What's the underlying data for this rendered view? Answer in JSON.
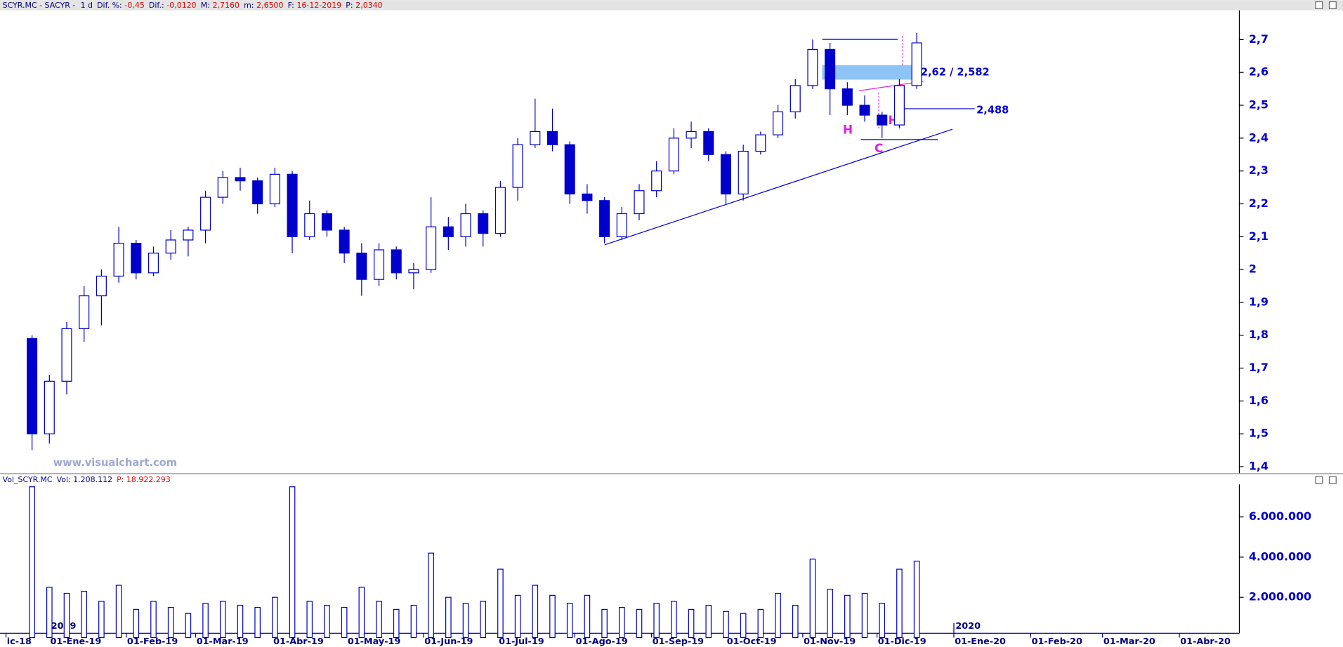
{
  "chart_data": {
    "type": "candlestick",
    "header": {
      "symbol": "SCYR.MC - SACYR -",
      "period": "1 d",
      "fields": [
        {
          "label": "Dif. %:",
          "value": "-0,45"
        },
        {
          "label": "Dif.:",
          "value": "-0,0120"
        },
        {
          "label": "M:",
          "value": "2,7160"
        },
        {
          "label": "m:",
          "value": "2,6500"
        },
        {
          "label": "F:",
          "value": "16-12-2019"
        },
        {
          "label": "P:",
          "value": "2,0340"
        }
      ]
    },
    "watermark": "www.visualchart.com",
    "color": "#0000cc",
    "categories": [
      null,
      null,
      null,
      null,
      null,
      null,
      null,
      null,
      null,
      null,
      null,
      null,
      null,
      null,
      null,
      null,
      null,
      null,
      null,
      null,
      null,
      null,
      null,
      null,
      null,
      null,
      null,
      null,
      null,
      null,
      null,
      null,
      null,
      null,
      null,
      null,
      null,
      null,
      null,
      null,
      null,
      null,
      null,
      null,
      null,
      null,
      null,
      null,
      null,
      null,
      null,
      null
    ],
    "open": [
      1.79,
      1.5,
      1.66,
      1.82,
      1.92,
      1.98,
      2.08,
      1.99,
      2.05,
      2.09,
      2.12,
      2.22,
      2.28,
      2.27,
      2.2,
      2.29,
      2.1,
      2.17,
      2.12,
      2.05,
      1.97,
      2.06,
      1.99,
      2.0,
      2.13,
      2.1,
      2.17,
      2.11,
      2.25,
      2.38,
      2.42,
      2.38,
      2.23,
      2.21,
      2.1,
      2.17,
      2.24,
      2.3,
      2.4,
      2.42,
      2.35,
      2.23,
      2.36,
      2.41,
      2.48,
      2.56,
      2.67,
      2.55,
      2.5,
      2.47,
      2.44,
      2.56
    ],
    "high": [
      1.8,
      1.68,
      1.84,
      1.95,
      2.0,
      2.13,
      2.09,
      2.07,
      2.12,
      2.13,
      2.24,
      2.3,
      2.31,
      2.28,
      2.31,
      2.3,
      2.21,
      2.18,
      2.13,
      2.08,
      2.08,
      2.07,
      2.02,
      2.22,
      2.16,
      2.2,
      2.18,
      2.27,
      2.4,
      2.52,
      2.49,
      2.39,
      2.26,
      2.22,
      2.19,
      2.26,
      2.33,
      2.43,
      2.45,
      2.43,
      2.36,
      2.38,
      2.42,
      2.5,
      2.58,
      2.7,
      2.69,
      2.57,
      2.53,
      2.48,
      2.58,
      2.72
    ],
    "low": [
      1.45,
      1.47,
      1.62,
      1.78,
      1.83,
      1.96,
      1.97,
      1.98,
      2.03,
      2.04,
      2.08,
      2.2,
      2.24,
      2.17,
      2.19,
      2.05,
      2.09,
      2.1,
      2.02,
      1.92,
      1.95,
      1.97,
      1.94,
      1.99,
      2.06,
      2.07,
      2.07,
      2.1,
      2.21,
      2.37,
      2.36,
      2.2,
      2.17,
      2.08,
      2.09,
      2.15,
      2.22,
      2.29,
      2.37,
      2.33,
      2.2,
      2.21,
      2.35,
      2.4,
      2.46,
      2.55,
      2.47,
      2.47,
      2.45,
      2.4,
      2.43,
      2.55
    ],
    "close": [
      1.5,
      1.66,
      1.82,
      1.92,
      1.98,
      2.08,
      1.99,
      2.05,
      2.09,
      2.12,
      2.22,
      2.28,
      2.27,
      2.2,
      2.29,
      2.1,
      2.17,
      2.12,
      2.05,
      1.97,
      2.06,
      1.99,
      2.0,
      2.13,
      2.1,
      2.17,
      2.11,
      2.25,
      2.38,
      2.42,
      2.38,
      2.23,
      2.21,
      2.1,
      2.17,
      2.24,
      2.3,
      2.4,
      2.42,
      2.35,
      2.23,
      2.36,
      2.41,
      2.48,
      2.56,
      2.67,
      2.55,
      2.5,
      2.47,
      2.44,
      2.56,
      2.69
    ],
    "ylim": [
      1.38,
      2.789
    ],
    "yticks": [
      {
        "value": 1.4,
        "label": "1,4"
      },
      {
        "value": 1.5,
        "label": "1,5"
      },
      {
        "value": 1.6,
        "label": "1,6"
      },
      {
        "value": 1.7,
        "label": "1,7"
      },
      {
        "value": 1.8,
        "label": "1,8"
      },
      {
        "value": 1.9,
        "label": "1,9"
      },
      2,
      {
        "value": 2.1,
        "label": "2,1"
      },
      {
        "value": 2.2,
        "label": "2,2"
      },
      {
        "value": 2.3,
        "label": "2,3"
      },
      {
        "value": 2.4,
        "label": "2,4"
      },
      {
        "value": 2.5,
        "label": "2,5"
      },
      {
        "value": 2.6,
        "label": "2,6"
      },
      {
        "value": 2.7,
        "label": "2,7"
      }
    ],
    "xlim": [
      -1.6,
      69.5
    ],
    "xticks": [
      {
        "value": -1.5,
        "label": "ic-18"
      },
      {
        "value": 1,
        "label": "01-Ene-19"
      },
      {
        "value": 5.43,
        "label": "01-Feb-19"
      },
      {
        "value": 9.43,
        "label": "01-Mar-19"
      },
      {
        "value": 13.86,
        "label": "01-Abr-19"
      },
      {
        "value": 18.14,
        "label": "01-May-19"
      },
      {
        "value": 22.57,
        "label": "01-Jun-19"
      },
      {
        "value": 26.86,
        "label": "01-Jul-19"
      },
      {
        "value": 31.29,
        "label": "01-Ago-19"
      },
      {
        "value": 35.71,
        "label": "01-Sep-19"
      },
      {
        "value": 40,
        "label": "01-Oct-19"
      },
      {
        "value": 44.43,
        "label": "01-Nov-19"
      },
      {
        "value": 48.71,
        "label": "01-Dic-19"
      },
      {
        "value": 53.14,
        "label": "01-Ene-20"
      },
      {
        "value": 57.57,
        "label": "01-Feb-20"
      },
      {
        "value": 61.71,
        "label": "01-Mar-20"
      },
      {
        "value": 66.14,
        "label": "01-Abr-20"
      }
    ],
    "year_ticks": [
      {
        "value": 1,
        "label": "2019"
      },
      {
        "value": 53.14,
        "label": "2020"
      }
    ],
    "annotations": {
      "zone": "2,62 / 2,582",
      "support": "2,488",
      "h": "H",
      "hi": "Hi",
      "c": "C"
    },
    "volume": {
      "header": {
        "name": "Vol_SCYR.MC",
        "vol": "Vol: 1.208.112",
        "p": "P: 18.922.293"
      },
      "values": [
        7500000,
        2500000,
        2200000,
        2300000,
        1800000,
        2600000,
        1400000,
        1800000,
        1500000,
        1200000,
        1700000,
        1800000,
        1600000,
        1500000,
        2000000,
        7500000,
        1800000,
        1600000,
        1500000,
        2500000,
        1800000,
        1400000,
        1600000,
        4200000,
        2000000,
        1700000,
        1800000,
        3400000,
        2100000,
        2600000,
        2100000,
        1700000,
        2100000,
        1400000,
        1500000,
        1400000,
        1700000,
        1800000,
        1400000,
        1600000,
        1300000,
        1200000,
        1400000,
        2200000,
        1600000,
        3900000,
        2400000,
        2100000,
        2200000,
        1700000,
        3400000,
        3800000
      ],
      "ylim": [
        0,
        7620000
      ],
      "yticks": [
        {
          "value": 2000000,
          "label": "2.000.000"
        },
        {
          "value": 4000000,
          "label": "4.000.000"
        },
        {
          "value": 6000000,
          "label": "6.000.000"
        }
      ]
    }
  }
}
